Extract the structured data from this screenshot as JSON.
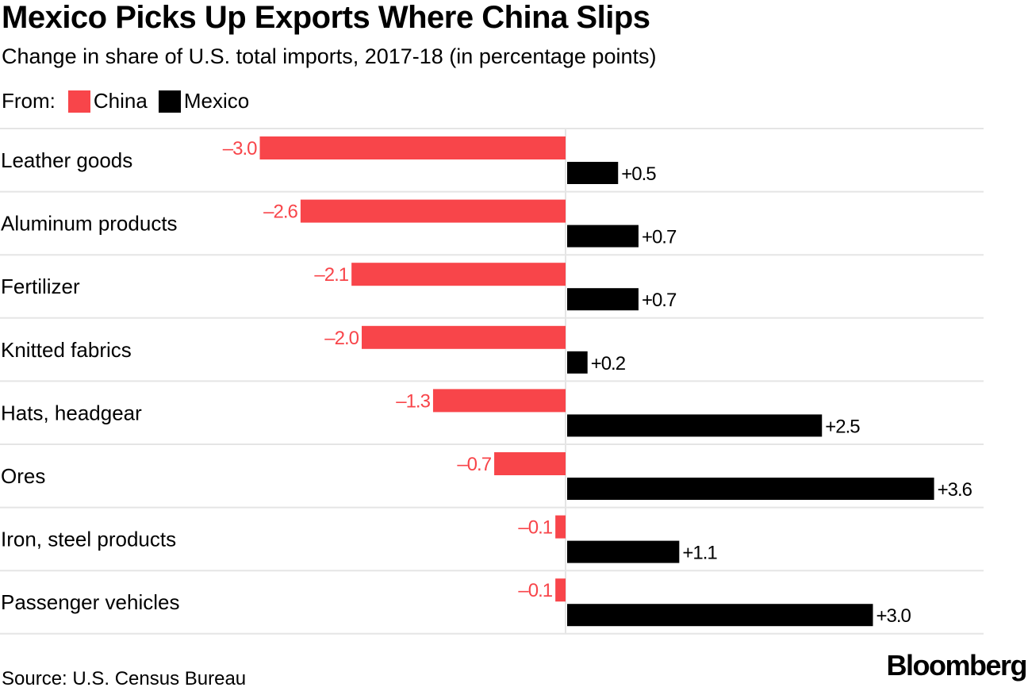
{
  "title": "Mexico Picks Up Exports Where China Slips",
  "subtitle": "Change in share of U.S. total imports, 2017-18 (in percentage points)",
  "legend": {
    "prefix": "From:",
    "china": "China",
    "mexico": "Mexico"
  },
  "colors": {
    "china": "#f8454a",
    "mexico": "#000000",
    "grid": "#e5e5e5"
  },
  "source": "Source: U.S. Census Bureau",
  "brand": "Bloomberg",
  "chart_data": {
    "type": "bar",
    "orientation": "horizontal",
    "title": "Mexico Picks Up Exports Where China Slips",
    "subtitle": "Change in share of U.S. total imports, 2017-18 (in percentage points)",
    "categories": [
      "Leather goods",
      "Aluminum products",
      "Fertilizer",
      "Knitted fabrics",
      "Hats, headgear",
      "Ores",
      "Iron, steel products",
      "Passenger vehicles"
    ],
    "series": [
      {
        "name": "China",
        "values": [
          -3.0,
          -2.6,
          -2.1,
          -2.0,
          -1.3,
          -0.7,
          -0.1,
          -0.1
        ],
        "labels": [
          "–3.0",
          "–2.6",
          "–2.1",
          "–2.0",
          "–1.3",
          "–0.7",
          "–0.1",
          "–0.1"
        ]
      },
      {
        "name": "Mexico",
        "values": [
          0.5,
          0.7,
          0.7,
          0.2,
          2.5,
          3.6,
          1.1,
          3.0
        ],
        "labels": [
          "+0.5",
          "+0.7",
          "+0.7",
          "+0.2",
          "+2.5",
          "+3.6",
          "+1.1",
          "+3.0"
        ]
      }
    ],
    "xlim": [
      -3.0,
      3.6
    ],
    "legend_position": "top-left",
    "grid": true
  }
}
